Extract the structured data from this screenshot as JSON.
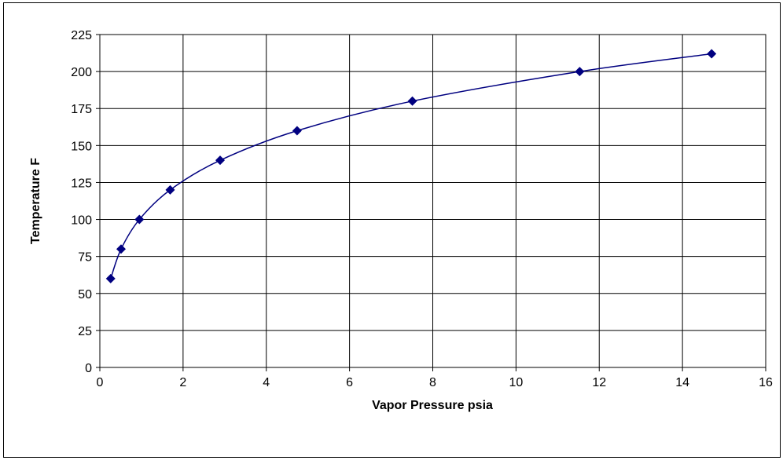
{
  "chart_data": {
    "type": "scatter",
    "x_label": "Vapor Pressure psia",
    "y_label": "Temperature F",
    "x": [
      0.26,
      0.51,
      0.95,
      1.69,
      2.89,
      4.74,
      7.51,
      11.53,
      14.7
    ],
    "values": [
      60,
      80,
      100,
      120,
      140,
      160,
      180,
      200,
      212
    ],
    "color": "#000080",
    "line": "smooth",
    "xlim": [
      0,
      16
    ],
    "xticks": [
      0,
      2,
      4,
      6,
      8,
      10,
      12,
      14,
      16
    ],
    "ylim": [
      0,
      225
    ],
    "yticks": [
      0,
      25,
      50,
      75,
      100,
      125,
      150,
      175,
      200,
      225
    ],
    "grid": true
  }
}
